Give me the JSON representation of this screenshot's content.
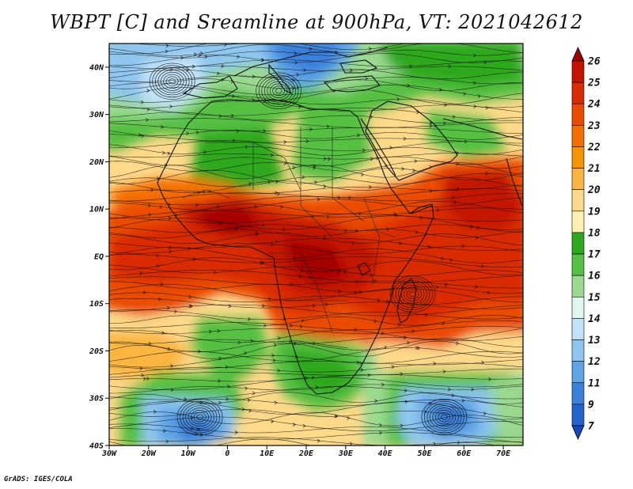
{
  "title": "WBPT [C] and Sreamline at 900hPa, VT: 2021042612",
  "credit": "GrADS: IGES/COLA",
  "map": {
    "lon_range": [
      -30,
      75
    ],
    "lat_range": [
      -40,
      45
    ],
    "lat_ticks": [
      {
        "value": 40,
        "label": "40N"
      },
      {
        "value": 30,
        "label": "30N"
      },
      {
        "value": 20,
        "label": "20N"
      },
      {
        "value": 10,
        "label": "10N"
      },
      {
        "value": 0,
        "label": "EQ"
      },
      {
        "value": -10,
        "label": "10S"
      },
      {
        "value": -20,
        "label": "20S"
      },
      {
        "value": -30,
        "label": "30S"
      },
      {
        "value": -40,
        "label": "40S"
      }
    ],
    "lon_ticks": [
      {
        "value": -30,
        "label": "30W"
      },
      {
        "value": -20,
        "label": "20W"
      },
      {
        "value": -10,
        "label": "10W"
      },
      {
        "value": 0,
        "label": "0"
      },
      {
        "value": 10,
        "label": "10E"
      },
      {
        "value": 20,
        "label": "20E"
      },
      {
        "value": 30,
        "label": "30E"
      },
      {
        "value": 40,
        "label": "40E"
      },
      {
        "value": 50,
        "label": "50E"
      },
      {
        "value": 60,
        "label": "60E"
      },
      {
        "value": 70,
        "label": "70E"
      }
    ]
  },
  "colorbar": {
    "labels": [
      "26",
      "25",
      "24",
      "23",
      "22",
      "21",
      "20",
      "19",
      "18",
      "17",
      "16",
      "15",
      "14",
      "13",
      "12",
      "11",
      "9",
      "7"
    ],
    "colors": [
      "#a50000",
      "#c41200",
      "#d92a00",
      "#ea4b00",
      "#f56f00",
      "#f99400",
      "#fbb540",
      "#fdd98a",
      "#fff2b0",
      "#2ea81f",
      "#55c043",
      "#9ad98f",
      "#dff7ec",
      "#c2e3f7",
      "#8fc6ef",
      "#5ea4e6",
      "#3b80db",
      "#2362cf",
      "#1248c0"
    ]
  },
  "map_regions": [
    {
      "name": "cyclone-north-atlantic",
      "lon": -14,
      "lat": 37
    },
    {
      "name": "cyclone-mediterranean",
      "lon": 13,
      "lat": 35
    },
    {
      "name": "cyclone-south-atlantic",
      "lon": -7,
      "lat": -34
    },
    {
      "name": "cyclone-south-indian",
      "lon": 55,
      "lat": -34
    },
    {
      "name": "vortex-madagascar",
      "lon": 47,
      "lat": -8
    }
  ]
}
